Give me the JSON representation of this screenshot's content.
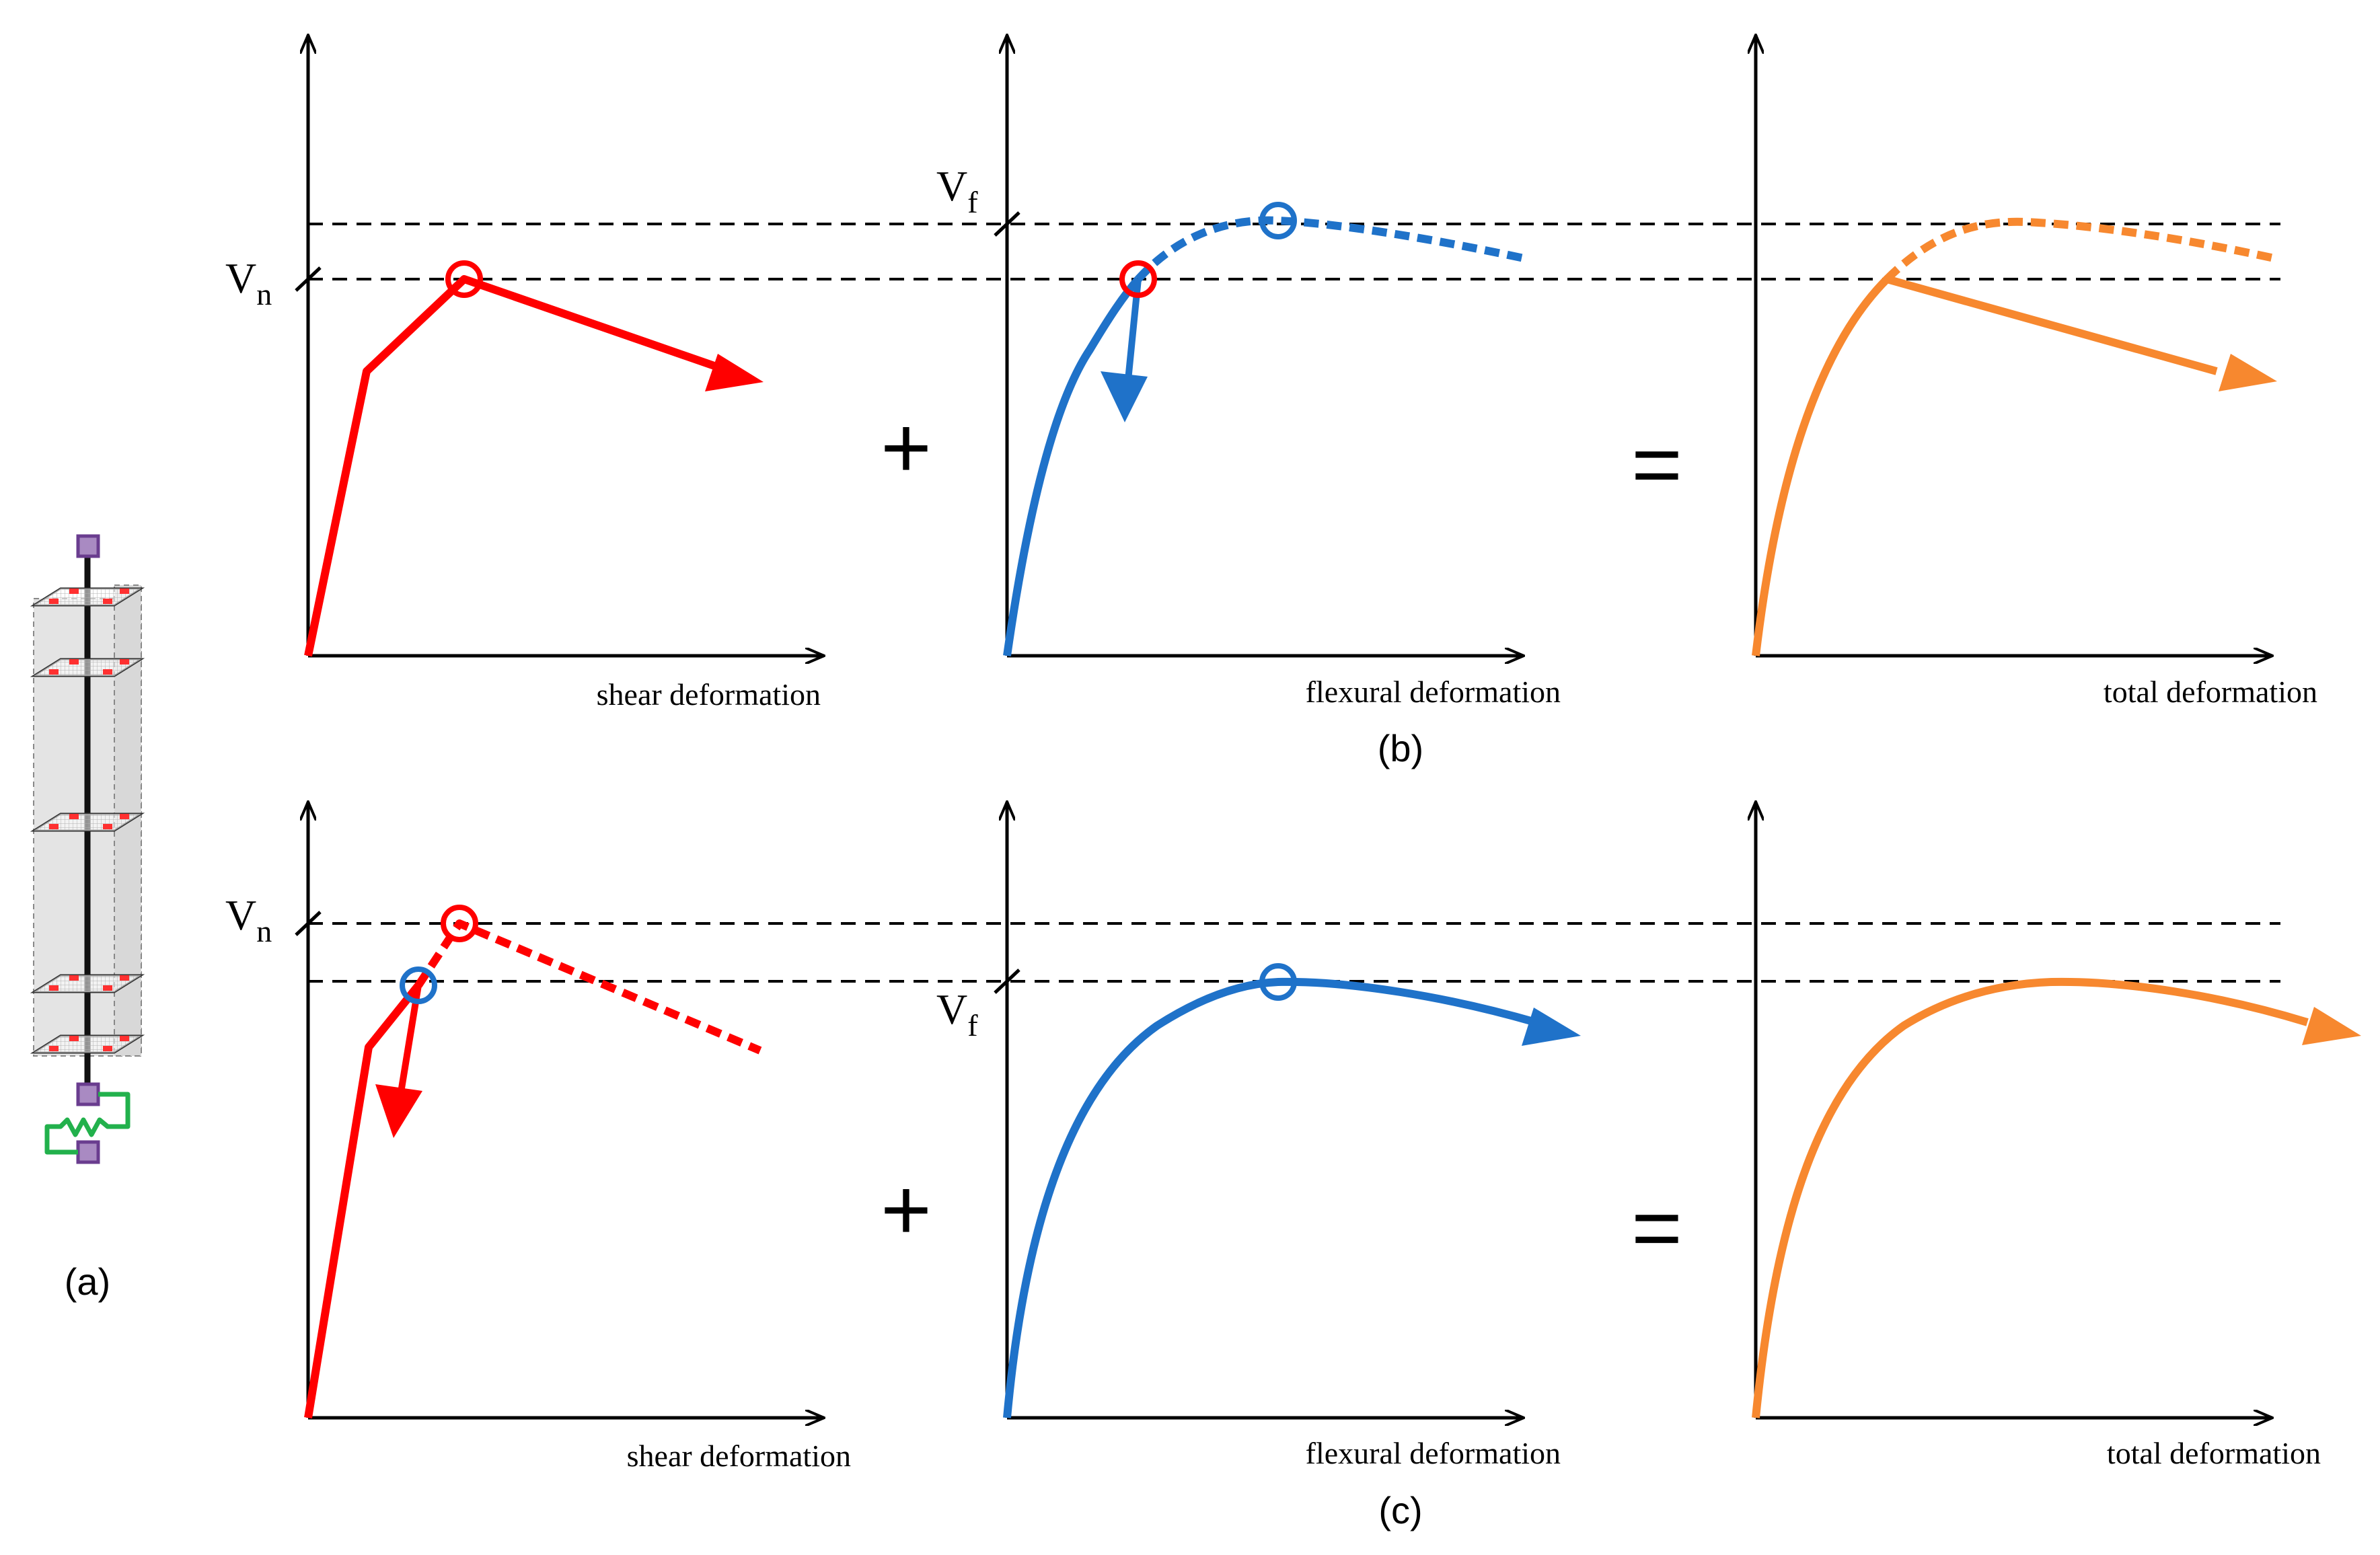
{
  "labels": {
    "panel_a": "(a)",
    "panel_b": "(b)",
    "panel_c": "(c)",
    "plus": "+",
    "equals": "=",
    "Vn": "V",
    "Vn_sub": "n",
    "Vf": "V",
    "Vf_sub": "f"
  },
  "axis_titles": {
    "shear": "shear deformation",
    "flexural": "flexural deformation",
    "total": "total deformation"
  },
  "colors": {
    "shear": "#ff0000",
    "flexural": "#1f72c9",
    "total": "#f7882f",
    "axis": "#000000",
    "spring": "#22b14c",
    "node": "#8f5bb0",
    "section_fiber": "#ff3030",
    "column_fill": "#e4e4e4"
  }
}
